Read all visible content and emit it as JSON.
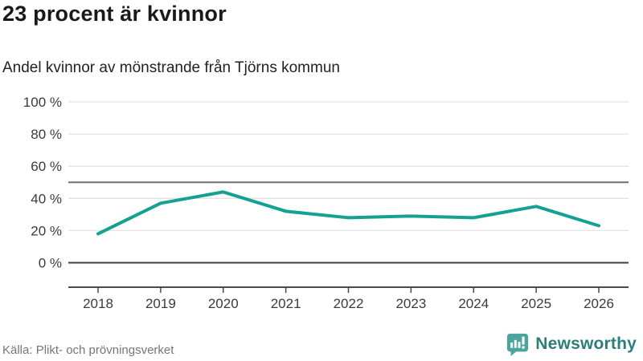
{
  "header": {
    "title": "23 procent är kvinnor",
    "subtitle": "Andel kvinnor av mönstrande från Tjörns kommun"
  },
  "chart_data": {
    "type": "line",
    "title": "23 procent är kvinnor",
    "subtitle": "Andel kvinnor av mönstrande från Tjörns kommun",
    "categories": [
      "2018",
      "2019",
      "2020",
      "2021",
      "2022",
      "2023",
      "2024",
      "2025",
      "2026"
    ],
    "series": [
      {
        "name": "Andel kvinnor av mönstrande",
        "values": [
          18,
          37,
          44,
          32,
          28,
          29,
          28,
          35,
          23
        ]
      }
    ],
    "xlabel": "",
    "ylabel": "",
    "ylim": [
      0,
      100
    ],
    "yticks": [
      0,
      20,
      40,
      60,
      80,
      100
    ],
    "ytick_suffix": " %",
    "reference_line_y": 50,
    "grid": "horizontal",
    "legend_position": "none"
  },
  "footer": {
    "source": "Källa: Plikt- och prövningsverket",
    "brand": "Newsworthy"
  },
  "colors": {
    "line": "#14a092",
    "grid_light": "#e3e3e3",
    "reference_line": "#6f6f6f",
    "zero_line": "#3d3d3d",
    "axis_line": "#4a4a4a",
    "tick_label": "#3b3b3b",
    "logo_teal": "#4ba59c",
    "brand_text": "#2b7e79"
  }
}
